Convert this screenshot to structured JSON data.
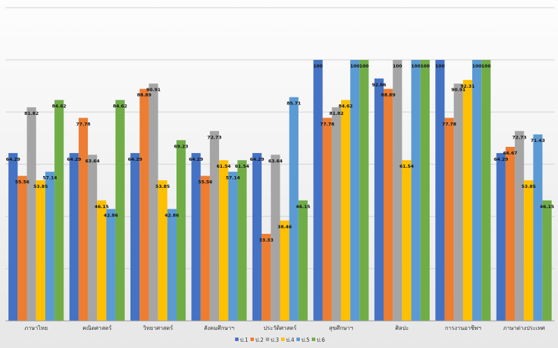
{
  "chart_data": {
    "type": "bar",
    "categories": [
      "ภาษาไทย",
      "คณิตศาสตร์",
      "วิทยาศาสตร์",
      "สังคมศึกษาฯ",
      "ประวัติศาสตร์",
      "สุขศึกษาฯ",
      "ศิลปะ",
      "การงานอาชีพฯ",
      "ภาษาต่างประเทศ"
    ],
    "series": [
      {
        "name": "ป.1",
        "color": "#4472C4",
        "values": [
          64.29,
          64.29,
          64.29,
          64.29,
          64.29,
          100,
          92.86,
          100,
          64.29
        ]
      },
      {
        "name": "ป.2",
        "color": "#ED7D31",
        "values": [
          55.56,
          77.78,
          88.89,
          55.56,
          33.33,
          77.78,
          88.89,
          77.78,
          66.67
        ]
      },
      {
        "name": "ป.3",
        "color": "#A5A5A5",
        "values": [
          81.82,
          63.64,
          90.91,
          72.73,
          63.64,
          81.82,
          100,
          90.91,
          72.73
        ]
      },
      {
        "name": "ป.4",
        "color": "#FFC000",
        "values": [
          53.85,
          46.15,
          53.85,
          61.54,
          38.46,
          84.62,
          61.54,
          92.31,
          53.85
        ]
      },
      {
        "name": "ป.5",
        "color": "#5B9BD5",
        "values": [
          57.14,
          42.86,
          42.86,
          57.14,
          85.71,
          100,
          100,
          100,
          71.43
        ]
      },
      {
        "name": "ป.6",
        "color": "#70AD47",
        "values": [
          84.62,
          84.62,
          69.23,
          61.54,
          46.15,
          100,
          100,
          100,
          46.15
        ]
      }
    ],
    "ylim": [
      0,
      100
    ],
    "gridlines": true,
    "legend_position": "bottom",
    "title": "",
    "xlabel": "",
    "ylabel": ""
  }
}
